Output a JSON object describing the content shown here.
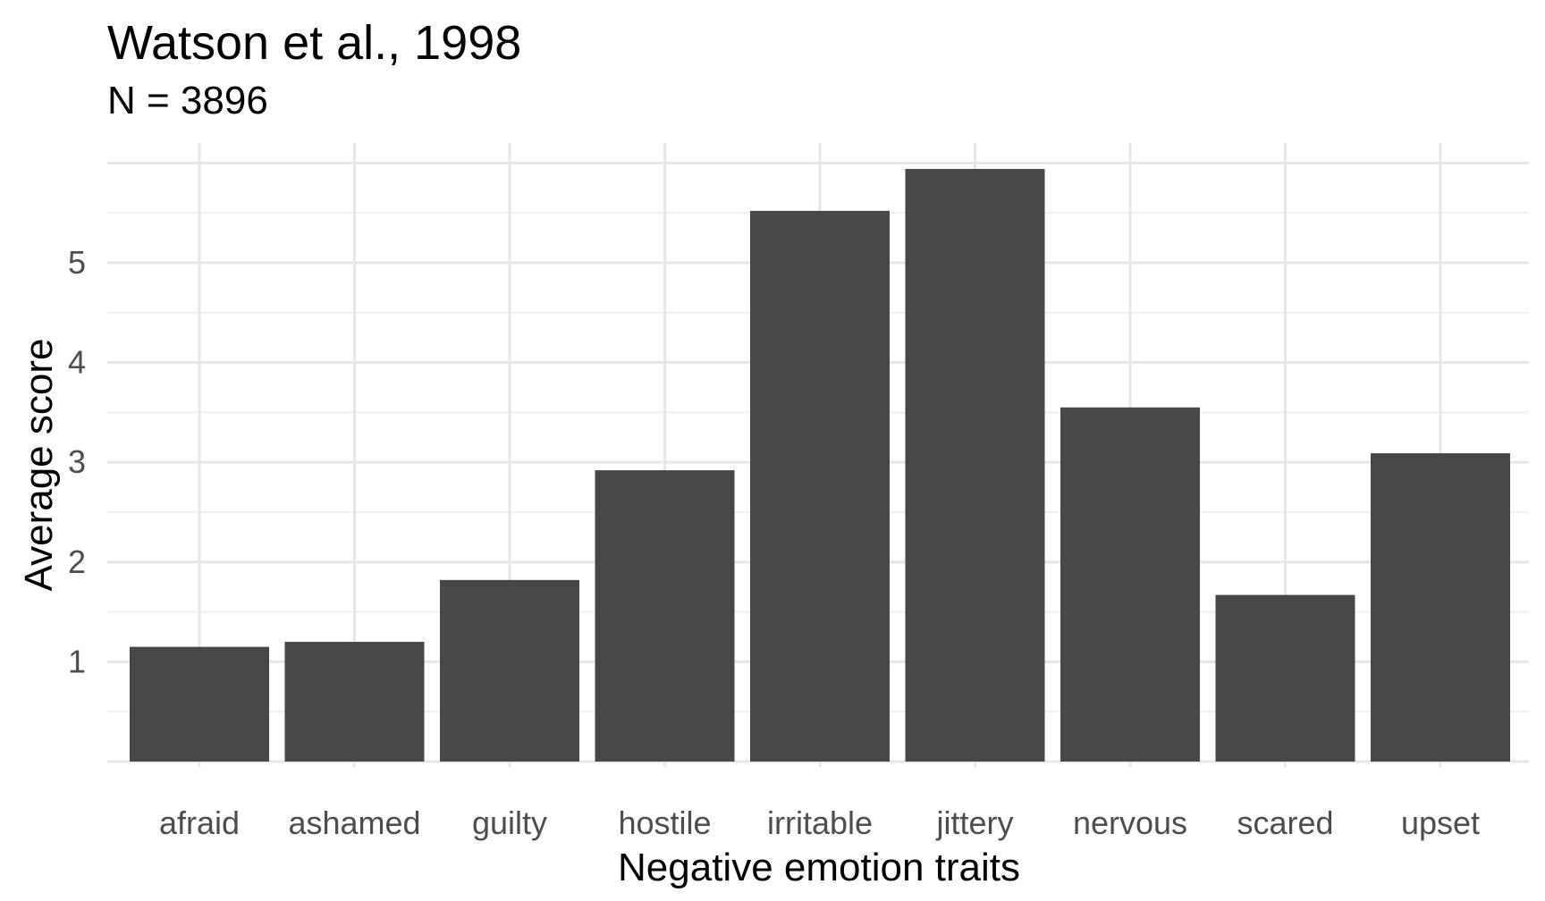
{
  "chart_data": {
    "type": "bar",
    "title": "Watson et al., 1998",
    "subtitle": "N = 3896",
    "xlabel": "Negative emotion traits",
    "ylabel": "Average score",
    "categories": [
      "afraid",
      "ashamed",
      "guilty",
      "hostile",
      "irritable",
      "jittery",
      "nervous",
      "scared",
      "upset"
    ],
    "values": [
      1.15,
      1.2,
      1.82,
      2.92,
      5.52,
      5.94,
      3.55,
      1.67,
      3.09
    ],
    "ylim": [
      0,
      6.2
    ],
    "yticks": [
      1,
      2,
      3,
      4,
      5
    ],
    "grid": true,
    "bar_color": "#474747",
    "grid_major_color": "#e6e6e6",
    "grid_minor_color": "#efefef"
  }
}
